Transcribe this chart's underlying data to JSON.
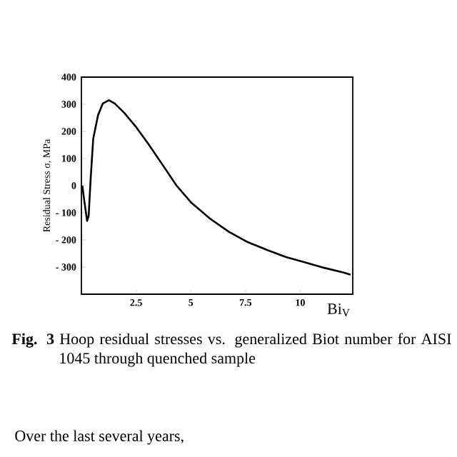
{
  "chart_data": {
    "type": "line",
    "xlabel": "Bi$_{V}$",
    "ylabel": "Residual Stress σ, MPa",
    "x": [
      0.04,
      0.17,
      0.26,
      0.33,
      0.43,
      0.54,
      0.76,
      0.98,
      1.26,
      1.52,
      1.96,
      2.5,
      3.04,
      3.7,
      4.35,
      5,
      5.87,
      6.74,
      7.6,
      8.48,
      9.35,
      10.2,
      11.1,
      11.96,
      12.3
    ],
    "series": [
      {
        "color": "#000000",
        "values": [
          0,
          -78,
          -130,
          -112,
          35,
          173,
          260,
          303,
          315,
          303,
          268,
          216,
          156,
          78,
          0,
          -61,
          -121,
          -170,
          -208,
          -237,
          -263,
          -282,
          -303,
          -320,
          -328
        ]
      }
    ],
    "xlim": [
      0,
      12.4
    ],
    "ylim": [
      -400,
      400
    ],
    "xticks": [
      2.5,
      5,
      7.5,
      10
    ],
    "yticks": [
      400,
      300,
      200,
      100,
      0,
      {
        "value": -100,
        "label": "- 100"
      },
      {
        "value": -200,
        "label": "- 200"
      },
      {
        "value": -300,
        "label": "- 300"
      }
    ],
    "annotations": [
      "**Fig. 3** Hoop residual stresses vs. generalized Biot number for AISI 1045 through quenched sample",
      "Over the last several years,"
    ]
  }
}
